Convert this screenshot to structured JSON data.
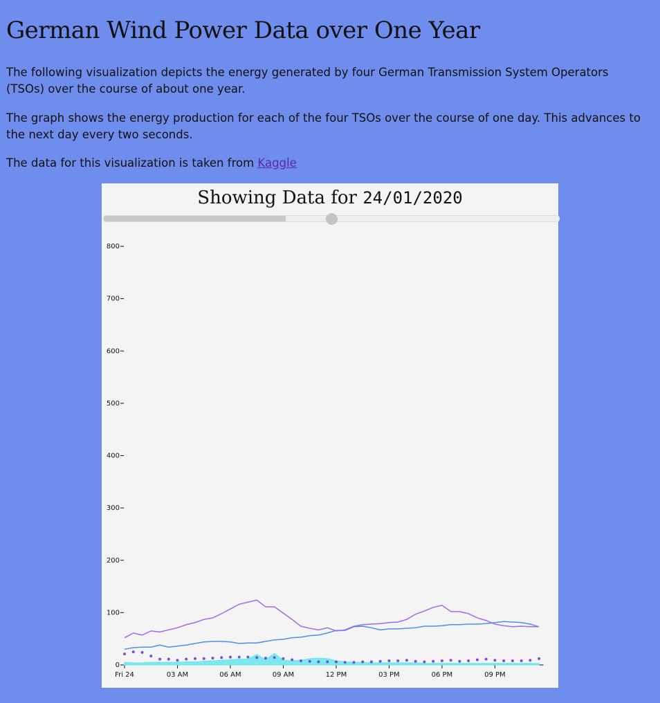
{
  "header": {
    "title": "German Wind Power Data over One Year"
  },
  "paragraphs": [
    "The following visualization depicts the energy generated by four German Transmission System Operators (TSOs) over the course of about one year.",
    "The graph shows the energy production for each of the four TSOs over the course of one day. This advances to the next day every two seconds."
  ],
  "source": {
    "text": "The data for this visualization is taken from",
    "link": "Kaggle"
  },
  "chart_data": {
    "type": "line",
    "title": "Showing Data for",
    "date": "24/01/2020",
    "x": [
      0,
      0.5,
      1,
      1.5,
      2,
      2.5,
      3,
      3.5,
      4,
      4.5,
      5,
      5.5,
      6,
      6.5,
      7,
      7.5,
      8,
      8.5,
      9,
      9.5,
      10,
      10.5,
      11,
      11.5,
      12,
      12.5,
      13,
      13.5,
      14,
      14.5,
      15,
      15.5,
      16,
      16.5,
      17,
      17.5,
      18,
      18.5,
      19,
      19.5,
      20,
      20.5,
      21,
      21.5,
      22,
      22.5,
      23,
      23.5
    ],
    "xlim": [
      0,
      23.75
    ],
    "xticks": [
      {
        "value": 0,
        "label": "Fri 24"
      },
      {
        "value": 3,
        "label": "03 AM"
      },
      {
        "value": 6,
        "label": "06 AM"
      },
      {
        "value": 9,
        "label": "09 AM"
      },
      {
        "value": 12,
        "label": "12 PM"
      },
      {
        "value": 15,
        "label": "03 PM"
      },
      {
        "value": 18,
        "label": "06 PM"
      },
      {
        "value": 21,
        "label": "09 PM"
      }
    ],
    "ylim": [
      0,
      800
    ],
    "yticks": [
      0,
      100,
      200,
      300,
      400,
      500,
      600,
      700,
      800
    ],
    "series": [
      {
        "style": "area",
        "color": "#5ee6ee",
        "values": [
          5,
          4,
          4,
          5,
          5,
          5,
          5,
          6,
          6,
          7,
          8,
          9,
          10,
          11,
          11,
          20,
          10,
          22,
          9,
          8,
          9,
          12,
          13,
          12,
          8,
          6,
          5,
          5,
          4,
          4,
          4,
          4,
          4,
          4,
          3,
          3,
          3,
          3,
          3,
          3,
          3,
          3,
          3,
          3,
          3,
          3,
          3,
          3
        ]
      },
      {
        "style": "dots",
        "color": "#7a4fd8",
        "values": [
          21,
          25,
          24,
          17,
          11,
          11,
          9,
          11,
          12,
          12,
          13,
          14,
          15,
          15,
          15,
          14,
          13,
          14,
          12,
          10,
          8,
          7,
          6,
          6,
          6,
          5,
          5,
          6,
          6,
          7,
          8,
          8,
          9,
          7,
          6,
          7,
          8,
          9,
          7,
          8,
          10,
          11,
          9,
          8,
          8,
          8,
          9,
          12
        ]
      },
      {
        "style": "line",
        "color": "#4f8fe0",
        "values": [
          30,
          33,
          34,
          34,
          38,
          34,
          36,
          38,
          41,
          44,
          45,
          45,
          44,
          41,
          42,
          42,
          45,
          48,
          49,
          52,
          53,
          56,
          57,
          61,
          66,
          66,
          73,
          74,
          71,
          67,
          69,
          69,
          70,
          71,
          74,
          74,
          75,
          77,
          77,
          78,
          78,
          79,
          81,
          83,
          82,
          81,
          78,
          73
        ]
      },
      {
        "style": "line",
        "color": "#9d6bf0",
        "values": [
          52,
          61,
          57,
          65,
          63,
          67,
          71,
          77,
          81,
          87,
          90,
          98,
          107,
          116,
          120,
          124,
          111,
          111,
          99,
          87,
          74,
          70,
          67,
          71,
          65,
          67,
          74,
          77,
          78,
          79,
          81,
          82,
          87,
          97,
          103,
          110,
          114,
          102,
          102,
          98,
          90,
          85,
          78,
          75,
          73,
          74,
          73,
          73
        ]
      }
    ]
  }
}
